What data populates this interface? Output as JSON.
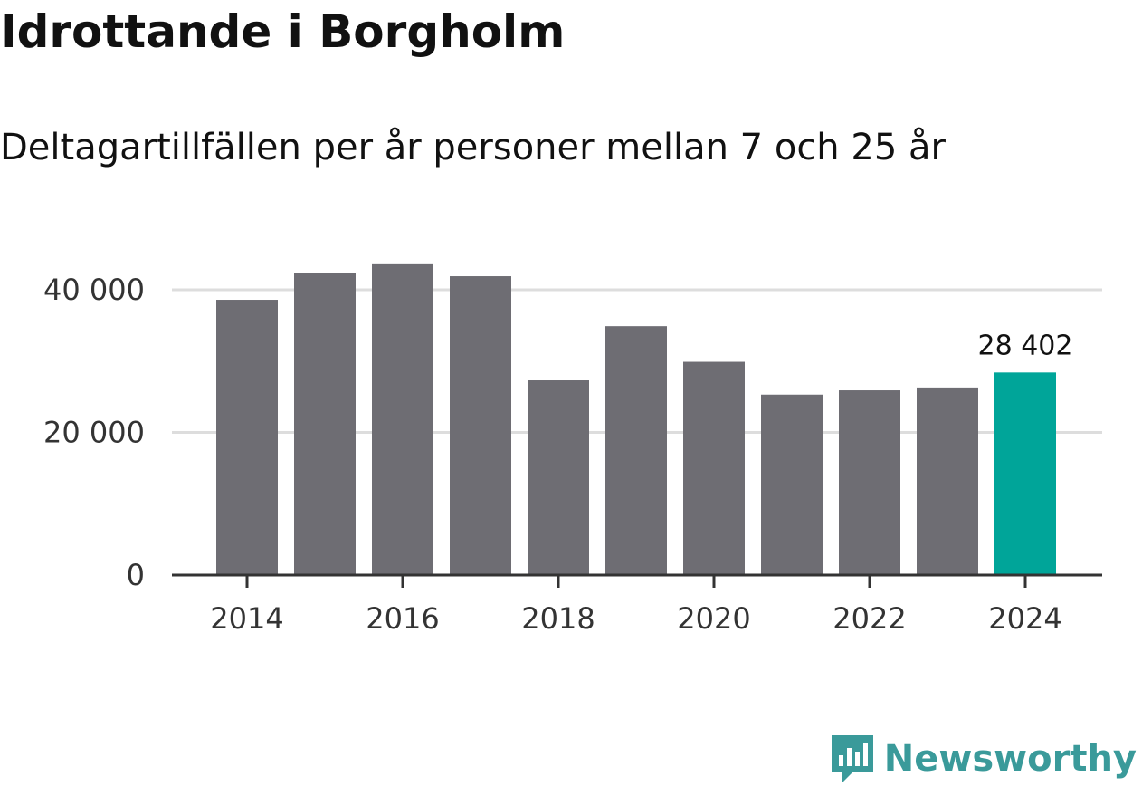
{
  "title": "Idrottande i Borgholm",
  "subtitle": "Deltagartillfällen per år personer mellan 7 och 25 år",
  "brand": {
    "name": "Newsworthy",
    "color": "#3a9a9a",
    "icon": "bar-chart-logo-icon"
  },
  "colors": {
    "bar": "#6e6d73",
    "highlight": "#00a599",
    "grid": "#dddddd",
    "axis": "#333333"
  },
  "chart_data": {
    "type": "bar",
    "title": "Idrottande i Borgholm",
    "subtitle": "Deltagartillfällen per år personer mellan 7 och 25 år",
    "xlabel": "",
    "ylabel": "",
    "categories": [
      "2014",
      "2015",
      "2016",
      "2017",
      "2018",
      "2019",
      "2020",
      "2021",
      "2022",
      "2023",
      "2024"
    ],
    "values": [
      38600,
      42300,
      43700,
      41900,
      27300,
      34900,
      29900,
      25300,
      25900,
      26300,
      28402
    ],
    "highlight_index": 10,
    "highlight_label": "28 402",
    "ylim": [
      0,
      40000
    ],
    "yticks": [
      0,
      20000,
      40000
    ],
    "ytick_labels": [
      "0",
      "20 000",
      "40 000"
    ],
    "xtick_labels": [
      "2014",
      "2016",
      "2018",
      "2020",
      "2022",
      "2024"
    ],
    "grid": true,
    "legend": "none"
  }
}
